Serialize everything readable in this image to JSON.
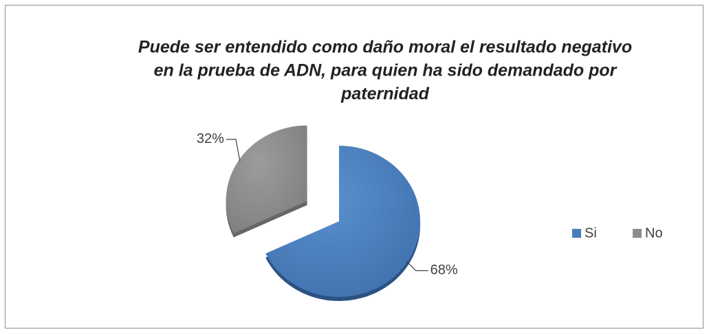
{
  "chart_data": {
    "type": "pie",
    "title": [
      "Puede ser entendido como daño moral el resultado negativo",
      "en la prueba de ADN, para quien ha sido demandado por",
      "paternidad"
    ],
    "categories": [
      "Si",
      "No"
    ],
    "values": [
      68,
      32
    ],
    "value_labels": [
      "68%",
      "32%"
    ],
    "colors": [
      "#4a7ebb",
      "#8c8c8c"
    ],
    "legend": "right"
  }
}
